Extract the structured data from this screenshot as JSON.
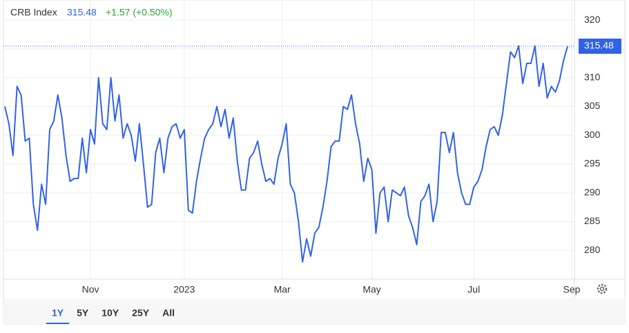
{
  "chart_data": {
    "type": "line",
    "title": "CRB Index",
    "last_price": 315.48,
    "change": "+1.57 (+0.50%)",
    "ranges": [
      "1Y",
      "5Y",
      "10Y",
      "25Y",
      "All"
    ],
    "selected_range": 0,
    "categories": [
      null,
      null,
      null,
      null,
      null,
      null,
      null,
      null,
      null,
      null,
      null,
      null,
      null,
      null,
      null,
      null,
      null,
      null,
      null,
      null,
      null,
      "Nov",
      null,
      null,
      null,
      null,
      null,
      null,
      null,
      null,
      null,
      null,
      null,
      null,
      null,
      null,
      null,
      null,
      null,
      null,
      null,
      null,
      null,
      null,
      "2023",
      null,
      null,
      null,
      null,
      null,
      null,
      null,
      null,
      null,
      null,
      null,
      null,
      null,
      null,
      null,
      null,
      null,
      null,
      null,
      null,
      null,
      null,
      null,
      "Mar",
      null,
      null,
      null,
      null,
      null,
      null,
      null,
      null,
      null,
      null,
      null,
      null,
      null,
      null,
      null,
      null,
      null,
      null,
      null,
      null,
      null,
      "May",
      null,
      null,
      null,
      null,
      null,
      null,
      null,
      null,
      null,
      null,
      null,
      null,
      null,
      null,
      null,
      null,
      null,
      null,
      null,
      null,
      null,
      null,
      null,
      null,
      "Jul",
      null,
      null,
      null,
      null,
      null,
      null,
      null,
      null,
      null,
      null,
      null,
      null,
      null,
      null,
      null,
      null,
      null,
      null,
      null,
      null,
      null,
      null,
      null,
      "Sep"
    ],
    "series": [
      {
        "name": "CRB Index",
        "color": "#2f62e8",
        "values": [
          305,
          302,
          296.5,
          308.5,
          307,
          299,
          299.5,
          288,
          283.5,
          291.5,
          288,
          301,
          302.5,
          307,
          303,
          296.5,
          292,
          292.5,
          292.5,
          299.5,
          293.5,
          301,
          298.5,
          310,
          302,
          301,
          310,
          302.5,
          307,
          299.5,
          302,
          300,
          295.5,
          302,
          295,
          287.5,
          288,
          297,
          299.5,
          293.5,
          299.5,
          301.5,
          302,
          299.5,
          301,
          287,
          286.5,
          292,
          296,
          299.5,
          301,
          302,
          305,
          301.5,
          304.5,
          299.5,
          303,
          295.5,
          290.5,
          290.5,
          296,
          297,
          299,
          295,
          292,
          292.5,
          291.5,
          296,
          298.5,
          302,
          291.5,
          290,
          285,
          278,
          282,
          279,
          283,
          284,
          287.5,
          292,
          298,
          299,
          299,
          305,
          304.5,
          307,
          302,
          298.5,
          292,
          296,
          294,
          283,
          290,
          291,
          285,
          290.5,
          290,
          289.5,
          291,
          286,
          284,
          281,
          288.5,
          289.5,
          291.5,
          285,
          288.5,
          300.5,
          300.5,
          297,
          300.5,
          293.5,
          290,
          288,
          288,
          291,
          292,
          294,
          298,
          301,
          301.5,
          300,
          303.5,
          309,
          314.5,
          313.5,
          315.5,
          309,
          312.5,
          312.5,
          315.5,
          308.5,
          312.5,
          306.5,
          308.5,
          307.5,
          309.5,
          313,
          315.48,
          null
        ]
      }
    ],
    "ylim": [
      275,
      323.5
    ],
    "yticks": [
      280,
      285,
      290,
      295,
      300,
      305,
      310,
      315,
      320
    ],
    "grid": true
  }
}
